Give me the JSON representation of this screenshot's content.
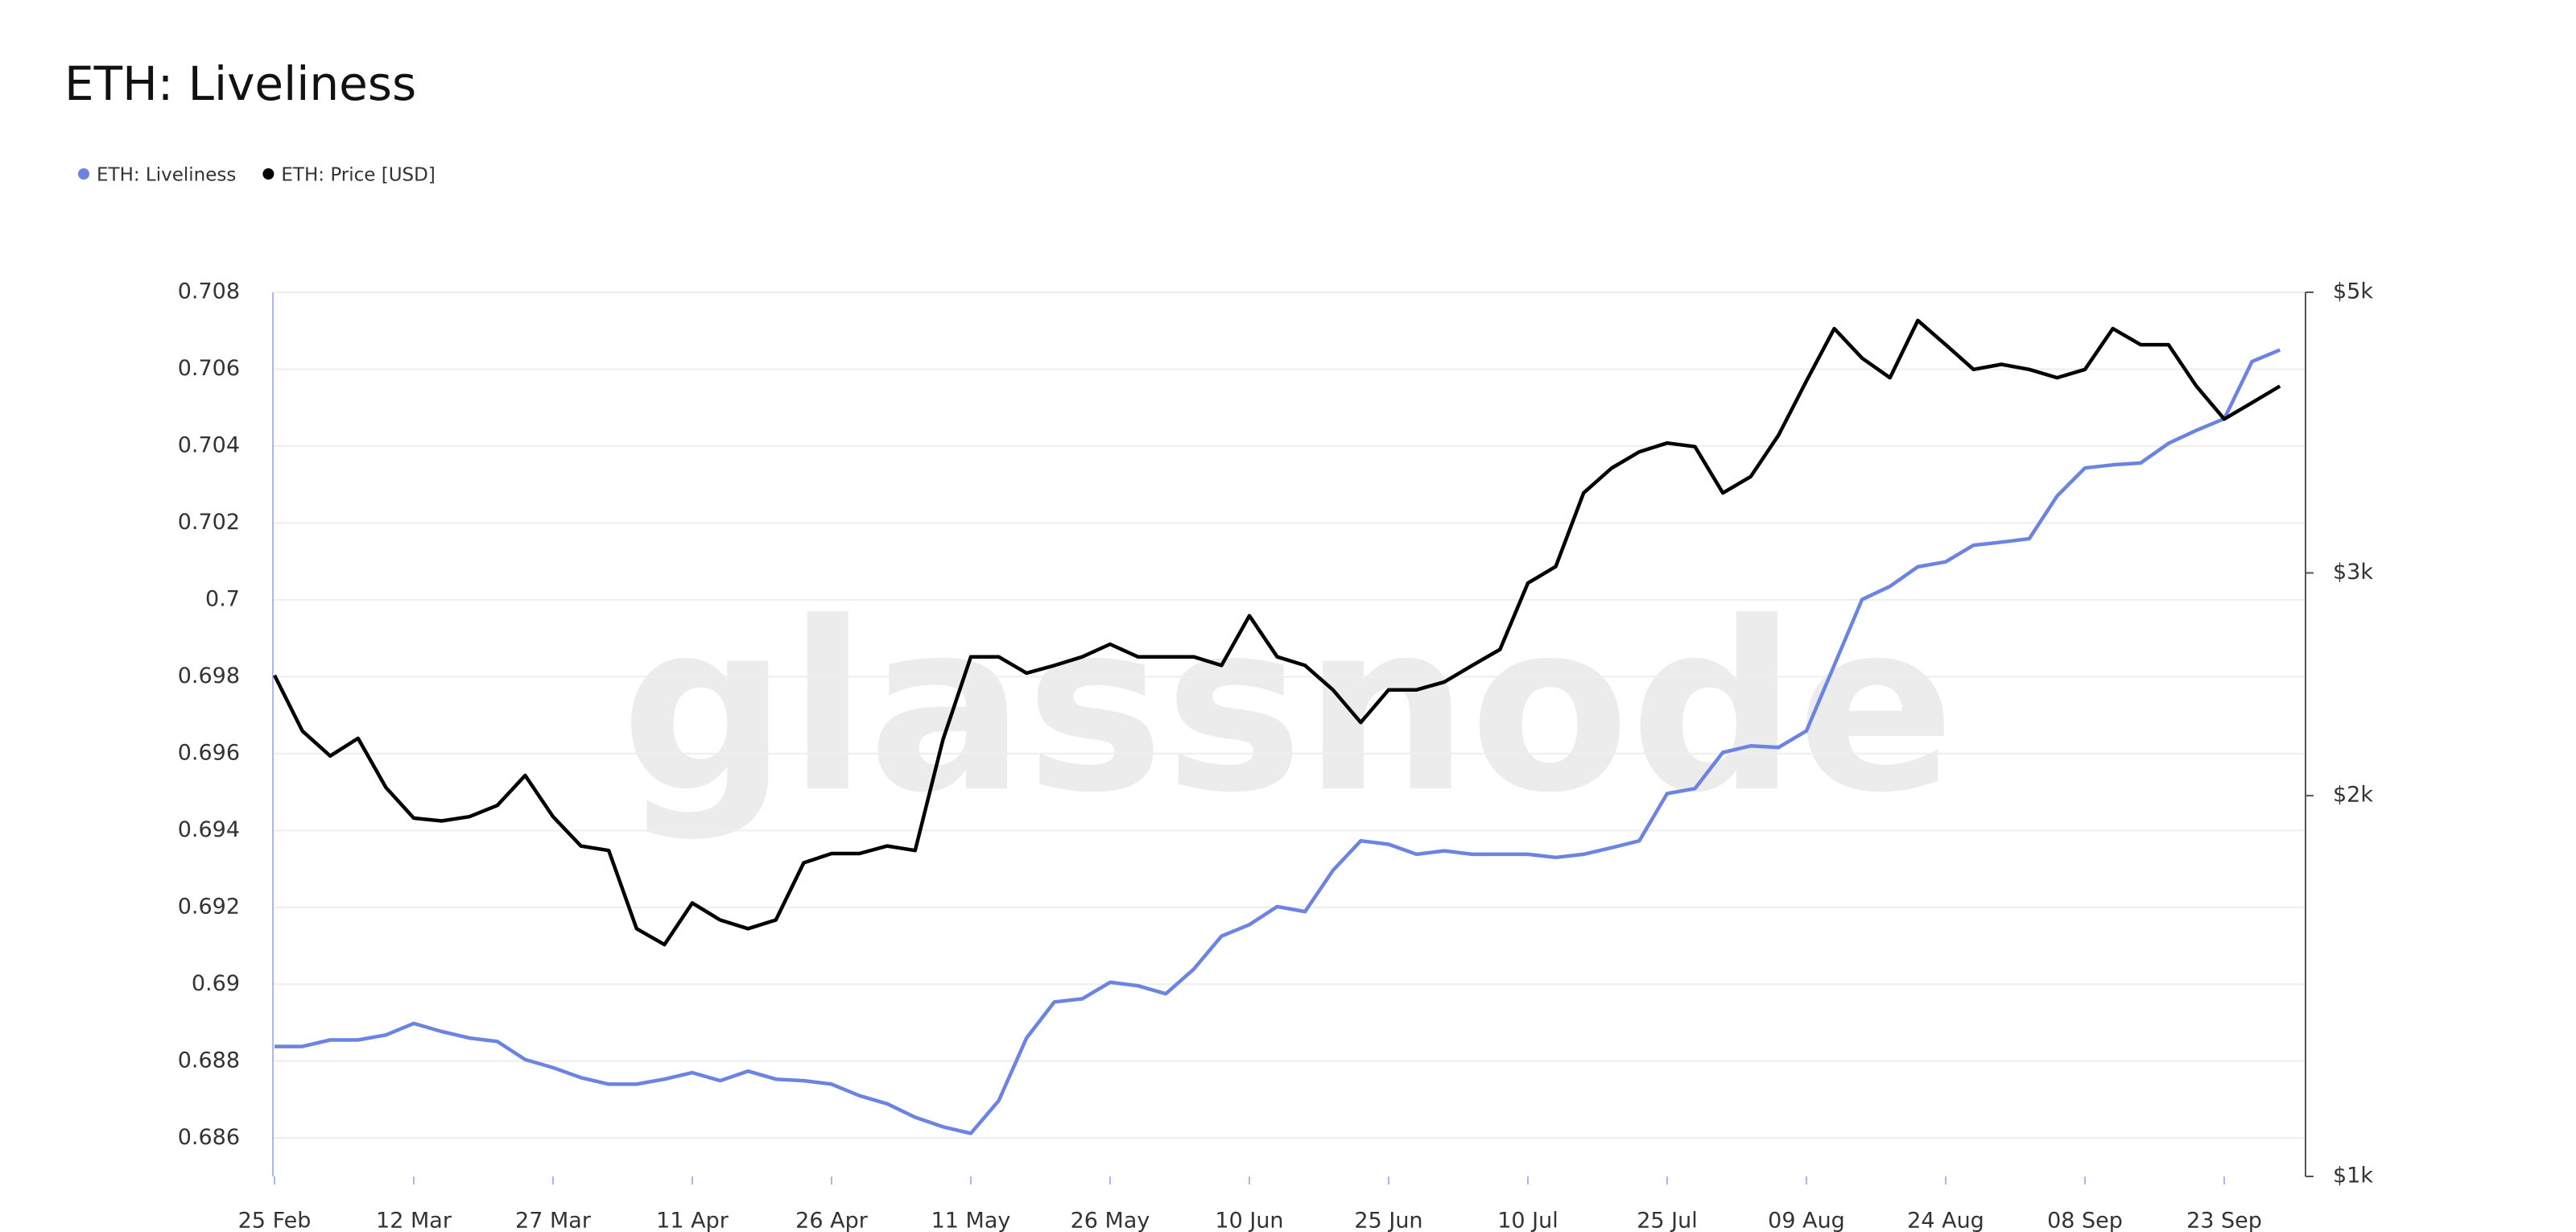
{
  "chart_data": {
    "type": "line",
    "title": "ETH: Liveliness",
    "watermark": "glassnode",
    "categories": [
      "25 Feb",
      null,
      null,
      null,
      null,
      "12 Mar",
      null,
      null,
      null,
      null,
      "27 Mar",
      null,
      null,
      null,
      null,
      "11 Apr",
      null,
      null,
      null,
      null,
      "26 Apr",
      null,
      null,
      null,
      null,
      "11 May",
      null,
      null,
      null,
      null,
      "26 May",
      null,
      null,
      null,
      null,
      "10 Jun",
      null,
      null,
      null,
      null,
      "25 Jun",
      null,
      null,
      null,
      null,
      "10 Jul",
      null,
      null,
      null,
      null,
      "25 Jul",
      null,
      null,
      null,
      null,
      "09 Aug",
      null,
      null,
      null,
      null,
      "24 Aug",
      null,
      null,
      null,
      null,
      "08 Sep",
      null,
      null,
      null,
      null,
      "23 Sep",
      null,
      null
    ],
    "series": [
      {
        "name": "ETH: Liveliness",
        "color": "#6b84e2",
        "axis": "y",
        "values": [
          0.68838,
          0.68838,
          0.68855,
          0.68855,
          0.68868,
          0.68898,
          0.68877,
          0.6886,
          0.68851,
          0.68804,
          0.68783,
          0.68757,
          0.6874,
          0.6874,
          0.68753,
          0.6877,
          0.68749,
          0.68774,
          0.68753,
          0.68749,
          0.6874,
          0.6871,
          0.68689,
          0.68654,
          0.68629,
          0.68612,
          0.68697,
          0.6886,
          0.68954,
          0.68962,
          0.69005,
          0.68996,
          0.68975,
          0.69039,
          0.69125,
          0.69155,
          0.69202,
          0.69189,
          0.69296,
          0.69373,
          0.69364,
          0.69338,
          0.69347,
          0.69338,
          0.69338,
          0.69338,
          0.6933,
          0.69338,
          0.69355,
          0.69373,
          0.69496,
          0.69509,
          0.69603,
          0.6962,
          0.69616,
          0.69659,
          0.6983,
          0.70001,
          0.70035,
          0.70086,
          0.70099,
          0.70142,
          0.7015,
          0.70159,
          0.7027,
          0.70343,
          0.70351,
          0.70356,
          0.70407,
          0.70441,
          0.70471,
          0.7062,
          0.7065
        ]
      },
      {
        "name": "ETH: Price [USD]",
        "color": "#000000",
        "axis": "y2",
        "values": [
          2490,
          2250,
          2150,
          2220,
          2030,
          1920,
          1910,
          1925,
          1965,
          2075,
          1925,
          1825,
          1810,
          1570,
          1525,
          1645,
          1595,
          1570,
          1595,
          1770,
          1800,
          1800,
          1825,
          1810,
          2215,
          2575,
          2575,
          2500,
          2535,
          2575,
          2635,
          2575,
          2575,
          2575,
          2535,
          2775,
          2575,
          2535,
          2425,
          2285,
          2425,
          2425,
          2460,
          2535,
          2610,
          2945,
          3035,
          3470,
          3630,
          3740,
          3800,
          3775,
          3470,
          3575,
          3855,
          4255,
          4680,
          4435,
          4280,
          4750,
          4545,
          4345,
          4385,
          4345,
          4280,
          4345,
          4680,
          4545,
          4545,
          4215,
          3970,
          4090,
          4215
        ]
      }
    ],
    "ylim": [
      0.685,
      0.708
    ],
    "yticks": [
      0.686,
      0.688,
      0.69,
      0.692,
      0.694,
      0.696,
      0.698,
      0.7,
      0.702,
      0.704,
      0.706,
      0.708
    ],
    "y2lim": [
      1000,
      5000
    ],
    "y2scale": "log",
    "y2ticks": [
      {
        "value": 1000,
        "label": "$1k"
      },
      {
        "value": 2000,
        "label": "$2k"
      },
      {
        "value": 3000,
        "label": "$3k"
      },
      {
        "value": 5000,
        "label": "$5k"
      }
    ],
    "grid": true
  }
}
